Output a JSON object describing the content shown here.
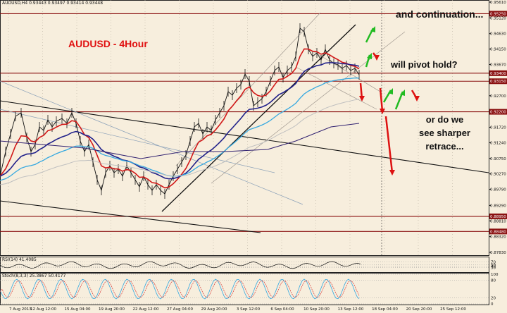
{
  "header": {
    "symbol_info": "AUDUSD,H4  0.93443  0.93497  0.93414  0.93448"
  },
  "annotations": {
    "title": "AUDUSD - 4Hour",
    "continuation": "and continuation...",
    "pivot": "will pivot hold?",
    "sharper": "or do we\nsee sharper\nretrace..."
  },
  "indicators": {
    "rsi_label": "RSI(14) 41.4085",
    "stoch_label": "Stoch(8,3,3) 25.3867 50.4177"
  },
  "colors": {
    "background": "#f7eedd",
    "price_line": "#111111",
    "ema_fast": "#d11818",
    "ema_mid": "#20208a",
    "ema_slow": "#35a8e0",
    "ema_long": "#c0c0c0",
    "ema_longest": "#302070",
    "level_line": "#8a1010",
    "arrow_up": "#22bb22",
    "arrow_down": "#dd1111"
  },
  "chart_data": {
    "type": "line",
    "y_axis_labels": [
      "0.95610",
      "0.95250",
      "0.95120",
      "0.94630",
      "0.94150",
      "0.93670",
      "0.93400",
      "0.93150",
      "0.92700",
      "0.92200",
      "0.91720",
      "0.91240",
      "0.90750",
      "0.90270",
      "0.89790",
      "0.89290",
      "0.88950",
      "0.88810",
      "0.88480",
      "0.88320",
      "0.87830"
    ],
    "highlight_levels": [
      "0.95250",
      "0.93400",
      "0.93150",
      "0.92200",
      "0.88950",
      "0.88480"
    ],
    "x_axis_labels": [
      "7 Aug 2013",
      "12 Aug 12:00",
      "15 Aug 04:00",
      "19 Aug 20:00",
      "22 Aug 12:00",
      "27 Aug 04:00",
      "29 Aug 20:00",
      "3 Sep 12:00",
      "6 Sep 04:00",
      "10 Sep 20:00",
      "13 Sep 12:00",
      "18 Sep 04:00",
      "20 Sep 20:00",
      "25 Sep 12:00"
    ],
    "rsi_axis": [
      "70",
      "50",
      "40",
      "30"
    ],
    "stoch_axis": [
      "100",
      "80",
      "20",
      "0"
    ]
  }
}
